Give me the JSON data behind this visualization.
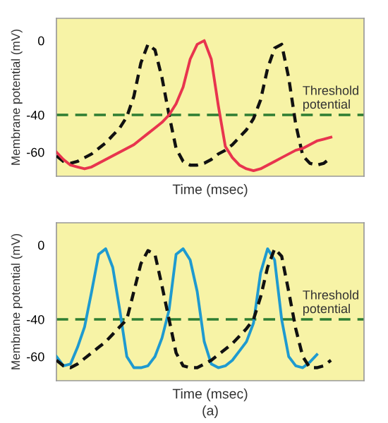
{
  "chart_data": [
    {
      "type": "line",
      "ylabel": "Membrane potential (mV)",
      "xlabel": "Time (msec)",
      "categories": [
        null,
        null,
        null,
        null,
        null,
        null,
        null,
        null,
        null,
        null,
        null,
        null,
        null,
        null,
        null,
        null,
        null,
        null,
        null,
        null,
        null,
        null,
        null,
        null,
        null,
        null,
        null,
        null,
        null,
        null,
        null,
        null,
        null,
        null,
        null,
        null,
        null,
        null,
        null,
        null
      ],
      "series": [
        {
          "color": "#111111",
          "line_style": "dotted",
          "values": [
            -62,
            -65,
            -66,
            -65,
            -63,
            -61,
            -58,
            -55,
            -51,
            -47,
            -41,
            -30,
            -12,
            -2,
            -5,
            -20,
            -40,
            -58,
            -65,
            -67,
            -67,
            -66,
            -64,
            -61,
            -59,
            -56,
            -52,
            -48,
            -42,
            -32,
            -15,
            -4,
            -2,
            -20,
            -45,
            -62,
            -66,
            -67,
            -66,
            -63
          ]
        },
        {
          "color": "#e8344e",
          "line_style": "solid",
          "values": [
            -60,
            -64,
            -67,
            -68,
            -69,
            -68,
            -66,
            -64,
            -62,
            -60,
            -58,
            -56,
            -53,
            -50,
            -47,
            -44,
            -40,
            -34,
            -25,
            -10,
            -2,
            0,
            -10,
            -35,
            -57,
            -63,
            -67,
            -69,
            -70,
            -69,
            -67,
            -65,
            -63,
            -61,
            -59,
            -58,
            -56,
            -54,
            -53,
            -52
          ]
        }
      ],
      "ylim": [
        -73,
        12
      ],
      "yticks": [
        0,
        -40,
        -60
      ],
      "tick_labels": "y",
      "ref_lines": [
        {
          "axis": "y",
          "value": -40,
          "label": "Threshold potential",
          "color": "#2e7d32",
          "line_style": "dashed"
        }
      ]
    },
    {
      "type": "line",
      "ylabel": "Membrane potential (mV)",
      "xlabel": "Time (msec)",
      "categories": [
        null,
        null,
        null,
        null,
        null,
        null,
        null,
        null,
        null,
        null,
        null,
        null,
        null,
        null,
        null,
        null,
        null,
        null,
        null,
        null,
        null,
        null,
        null,
        null,
        null,
        null,
        null,
        null,
        null,
        null,
        null,
        null,
        null,
        null,
        null,
        null,
        null,
        null,
        null,
        null
      ],
      "series": [
        {
          "color": "#1e9ad0",
          "line_style": "solid",
          "values": [
            -60,
            -65,
            -64,
            -55,
            -44,
            -25,
            -5,
            -2,
            -12,
            -35,
            -60,
            -66,
            -66,
            -65,
            -60,
            -50,
            -35,
            -5,
            -2,
            -8,
            -25,
            -52,
            -64,
            -66,
            -65,
            -62,
            -57,
            -52,
            -42,
            -15,
            -2,
            -8,
            -40,
            -60,
            -65,
            -66,
            -63,
            -59,
            null,
            null
          ]
        },
        {
          "color": "#111111",
          "line_style": "dotted",
          "values": [
            -62,
            -65,
            -66,
            -64,
            -61,
            -58,
            -55,
            -52,
            -48,
            -44,
            -40,
            -25,
            -10,
            -3,
            -5,
            -22,
            -40,
            -58,
            -65,
            -66,
            -66,
            -64,
            -62,
            -59,
            -56,
            -53,
            -49,
            -45,
            -40,
            -28,
            -12,
            -2,
            -6,
            -25,
            -45,
            -60,
            -66,
            -66,
            -65,
            -62
          ]
        }
      ],
      "ylim": [
        -73,
        12
      ],
      "yticks": [
        0,
        -40,
        -60
      ],
      "tick_labels": "y",
      "ref_lines": [
        {
          "axis": "y",
          "value": -40,
          "label": "Threshold potential",
          "color": "#2e7d32",
          "line_style": "dashed"
        }
      ],
      "annotations": [
        "(a)"
      ]
    }
  ]
}
